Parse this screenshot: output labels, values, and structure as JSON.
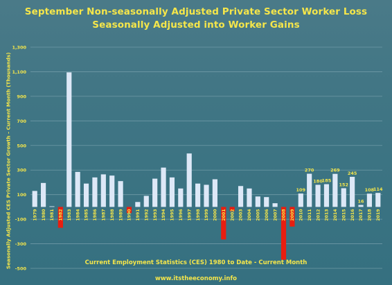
{
  "chart_data": {
    "type": "bar",
    "title": "September Non-seasonally Adjusted Private Sector Worker Loss",
    "subtitle": "Seasonally Adjusted into Worker Gains",
    "ylabel": "Seasonally Adjusted CES Private Sector Growth - Current Month (Thousands)",
    "xlabel": "",
    "footnote": "Current Employment Statistics (CES) 1980 to Date - Current Month",
    "source": "www.itstheeconomy.info",
    "ylim": [
      -500,
      1300
    ],
    "yticks": [
      -500,
      -300,
      -100,
      100,
      300,
      500,
      700,
      900,
      1100,
      1300
    ],
    "ytick_labels": [
      "-500",
      "-300",
      "-100",
      "100",
      "300",
      "500",
      "700",
      "900",
      "1,100",
      "1,300"
    ],
    "grid": true,
    "categories": [
      "1979",
      "1980",
      "1981",
      "1982",
      "1983",
      "1984",
      "1985",
      "1986",
      "1987",
      "1988",
      "1989",
      "1990",
      "1991",
      "1992",
      "1993",
      "1994",
      "1995",
      "1996",
      "1997",
      "1998",
      "1999",
      "2000",
      "2001",
      "2002",
      "2003",
      "2004",
      "2005",
      "2006",
      "2007",
      "2008",
      "2009",
      "2010",
      "2011",
      "2012",
      "2013",
      "2014",
      "2015",
      "2016",
      "2017",
      "2018",
      "2019"
    ],
    "values": [
      130,
      195,
      5,
      -170,
      1095,
      285,
      190,
      240,
      265,
      255,
      210,
      -50,
      40,
      90,
      230,
      320,
      240,
      150,
      435,
      190,
      180,
      225,
      -265,
      -35,
      170,
      150,
      85,
      80,
      30,
      -430,
      -160,
      109,
      270,
      180,
      185,
      269,
      152,
      245,
      16,
      108,
      114
    ],
    "data_labels": {
      "2010": "109",
      "2011": "270",
      "2012": "180",
      "2013": "185",
      "2014": "269",
      "2015": "152",
      "2016": "245",
      "2017": "16",
      "2018": "108",
      "2019": "114"
    },
    "colors": {
      "positive": "#dde8f7",
      "negative": "#e81e10",
      "grid": "#6f9aa6",
      "text": "#f5e64a"
    }
  }
}
